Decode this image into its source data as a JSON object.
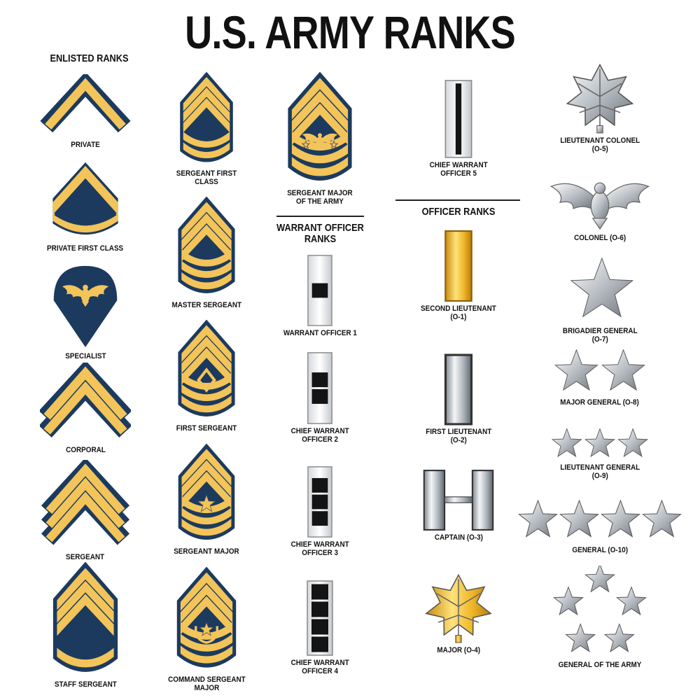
{
  "title": "U.S. ARMY RANKS",
  "headers": {
    "enlisted": "ENLISTED RANKS",
    "warrant": "WARRANT OFFICER\nRANKS",
    "officer": "OFFICER RANKS"
  },
  "colors": {
    "navy": "#1c3a5e",
    "gold": "#f2c45a",
    "silver": "#c9ced3",
    "black": "#141414",
    "brass": "#e0a81e"
  },
  "ranks": [
    {
      "label": "PRIVATE",
      "icon": "chevron-1"
    },
    {
      "label": "PRIVATE FIRST CLASS",
      "icon": "chevron-rocker"
    },
    {
      "label": "SPECIALIST",
      "icon": "specialist-eagle"
    },
    {
      "label": "CORPORAL",
      "icon": "chevron-2"
    },
    {
      "label": "SERGEANT",
      "icon": "chevron-3"
    },
    {
      "label": "STAFF SERGEANT",
      "icon": "shield-3-1"
    },
    {
      "label": "SERGEANT FIRST\nCLASS",
      "icon": "shield-3-2"
    },
    {
      "label": "MASTER SERGEANT",
      "icon": "shield-3-3"
    },
    {
      "label": "FIRST SERGEANT",
      "icon": "shield-3-3-diamond"
    },
    {
      "label": "SERGEANT MAJOR",
      "icon": "shield-3-3-star"
    },
    {
      "label": "COMMAND SERGEANT\nMAJOR",
      "icon": "shield-3-3-wreath-star"
    },
    {
      "label": "SERGEANT MAJOR\nOF THE ARMY",
      "icon": "shield-3-3-eagle"
    },
    {
      "label": "WARRANT OFFICER 1",
      "icon": "warrant-bar-1"
    },
    {
      "label": "CHIEF WARRANT\nOFFICER 2",
      "icon": "warrant-bar-2"
    },
    {
      "label": "CHIEF WARRANT\nOFFICER 3",
      "icon": "warrant-bar-3"
    },
    {
      "label": "CHIEF WARRANT\nOFFICER 4",
      "icon": "warrant-bar-4"
    },
    {
      "label": "CHIEF WARRANT\nOFFICER 5",
      "icon": "warrant-bar-stripe"
    },
    {
      "label": "SECOND LIEUTENANT\n(O-1)",
      "icon": "gold-bar"
    },
    {
      "label": "FIRST LIEUTENANT\n(O-2)",
      "icon": "silver-bar"
    },
    {
      "label": "CAPTAIN (O-3)",
      "icon": "silver-double-bar"
    },
    {
      "label": "MAJOR (O-4)",
      "icon": "gold-oak-leaf"
    },
    {
      "label": "LIEUTENANT COLONEL\n(O-5)",
      "icon": "silver-oak-leaf"
    },
    {
      "label": "COLONEL (O-6)",
      "icon": "silver-eagle"
    },
    {
      "label": "BRIGADIER GENERAL\n(O-7)",
      "icon": "star-1"
    },
    {
      "label": "MAJOR GENERAL (O-8)",
      "icon": "star-2"
    },
    {
      "label": "LIEUTENANT GENERAL\n(O-9)",
      "icon": "star-3"
    },
    {
      "label": "GENERAL (O-10)",
      "icon": "star-4"
    },
    {
      "label": "GENERAL OF THE ARMY",
      "icon": "star-5-pentagon"
    }
  ]
}
